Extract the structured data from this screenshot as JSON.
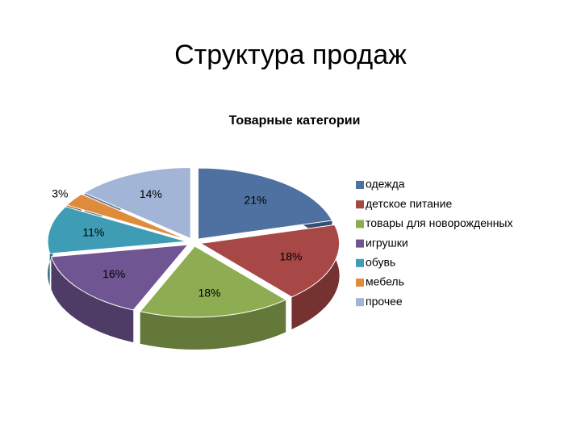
{
  "chart_data": {
    "type": "pie3d",
    "title": "Структура продаж",
    "subtitle": "Товарные категории",
    "categories": [
      "одежда",
      "детское питание",
      "товары для новорожденных",
      "игрушки",
      "обувь",
      "мебель",
      "прочее"
    ],
    "values": [
      21,
      18,
      18,
      16,
      11,
      3,
      14
    ],
    "value_labels": [
      "21%",
      "18%",
      "18%",
      "16%",
      "11%",
      "3%",
      "14%"
    ],
    "colors": [
      "#4f71a2",
      "#a84846",
      "#8eac52",
      "#6f5592",
      "#3f9cb5",
      "#de8b3c",
      "#a2b5d6"
    ],
    "legend": "right"
  }
}
